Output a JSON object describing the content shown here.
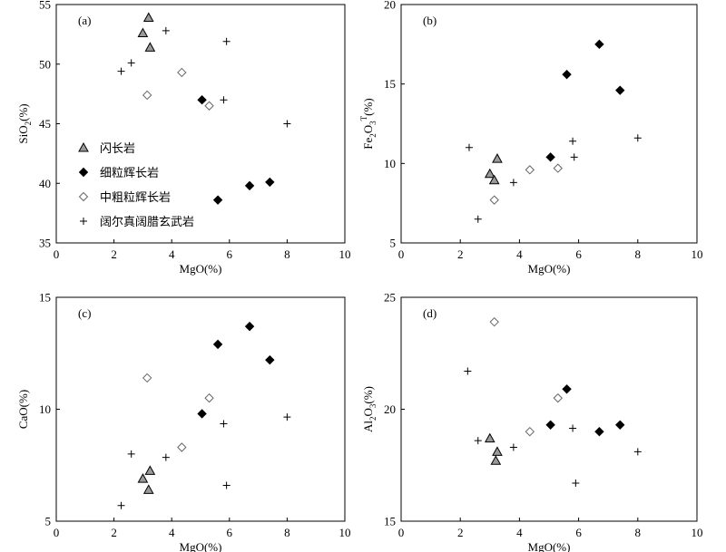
{
  "legend": {
    "items": [
      {
        "label": "闪长岩",
        "marker": "triangle",
        "fill": "#9a9a9a",
        "stroke": "#000000"
      },
      {
        "label": "细粒辉长岩",
        "marker": "diamond",
        "fill": "#000000",
        "stroke": "#000000"
      },
      {
        "label": "中粗粒辉长岩",
        "marker": "diamond",
        "fill": "#ffffff",
        "stroke": "#666666"
      },
      {
        "label": "阔尔真阔腊玄武岩",
        "marker": "plus",
        "fill": "none",
        "stroke": "#000000"
      }
    ]
  },
  "chart_data": [
    {
      "type": "scatter",
      "panel": "(a)",
      "xlabel": "MgO(%)",
      "ylabel": "SiO2(%)",
      "ylabel_parts": [
        {
          "t": "SiO",
          "sub": false
        },
        {
          "t": "2",
          "sub": true
        },
        {
          "t": "(%)",
          "sub": false
        }
      ],
      "xlim": [
        0,
        10
      ],
      "ylim": [
        35,
        55
      ],
      "xticks": [
        0,
        2,
        4,
        6,
        8,
        10
      ],
      "yticks": [
        35,
        40,
        45,
        50,
        55
      ],
      "series": [
        {
          "name": "闪长岩",
          "points": [
            [
              3.2,
              53.9
            ],
            [
              3.0,
              52.6
            ],
            [
              3.25,
              51.4
            ]
          ]
        },
        {
          "name": "细粒辉长岩",
          "points": [
            [
              5.05,
              47.0
            ],
            [
              5.6,
              38.6
            ],
            [
              6.7,
              39.8
            ],
            [
              7.4,
              40.1
            ]
          ]
        },
        {
          "name": "中粗粒辉长岩",
          "points": [
            [
              3.15,
              47.4
            ],
            [
              4.35,
              49.3
            ],
            [
              5.3,
              46.5
            ]
          ]
        },
        {
          "name": "阔尔真阔腊玄武岩",
          "points": [
            [
              2.25,
              49.4
            ],
            [
              2.6,
              50.1
            ],
            [
              3.8,
              52.8
            ],
            [
              5.9,
              51.9
            ],
            [
              5.8,
              47.0
            ],
            [
              8.0,
              45.0
            ]
          ]
        }
      ],
      "legend": true
    },
    {
      "type": "scatter",
      "panel": "(b)",
      "xlabel": "MgO(%)",
      "ylabel": "Fe2O3T(%)",
      "ylabel_parts": [
        {
          "t": "Fe",
          "sub": false
        },
        {
          "t": "2",
          "sub": true
        },
        {
          "t": "O",
          "sub": false
        },
        {
          "t": "3",
          "sub": true
        },
        {
          "t": "T",
          "sup": true
        },
        {
          "t": "(%)",
          "sub": false
        }
      ],
      "xlim": [
        0,
        10
      ],
      "ylim": [
        5,
        20
      ],
      "xticks": [
        0,
        2,
        4,
        6,
        8,
        10
      ],
      "yticks": [
        5,
        10,
        15,
        20
      ],
      "series": [
        {
          "name": "闪长岩",
          "points": [
            [
              3.25,
              10.3
            ],
            [
              3.0,
              9.35
            ],
            [
              3.15,
              8.95
            ]
          ]
        },
        {
          "name": "细粒辉长岩",
          "points": [
            [
              5.05,
              10.4
            ],
            [
              5.6,
              15.6
            ],
            [
              6.7,
              17.5
            ],
            [
              7.4,
              14.6
            ]
          ]
        },
        {
          "name": "中粗粒辉长岩",
          "points": [
            [
              3.15,
              7.7
            ],
            [
              4.35,
              9.6
            ],
            [
              5.3,
              9.7
            ]
          ]
        },
        {
          "name": "阔尔真阔腊玄武岩",
          "points": [
            [
              2.3,
              11.0
            ],
            [
              2.6,
              6.5
            ],
            [
              3.8,
              8.8
            ],
            [
              5.8,
              11.4
            ],
            [
              5.85,
              10.4
            ],
            [
              8.0,
              11.6
            ]
          ]
        }
      ]
    },
    {
      "type": "scatter",
      "panel": "(c)",
      "xlabel": "MgO(%)",
      "ylabel": "CaO(%)",
      "ylabel_parts": [
        {
          "t": "CaO(%)",
          "sub": false
        }
      ],
      "xlim": [
        0,
        10
      ],
      "ylim": [
        5,
        15
      ],
      "xticks": [
        0,
        2,
        4,
        6,
        8,
        10
      ],
      "yticks": [
        5,
        10,
        15
      ],
      "series": [
        {
          "name": "闪长岩",
          "points": [
            [
              3.0,
              6.9
            ],
            [
              3.25,
              7.25
            ],
            [
              3.2,
              6.4
            ]
          ]
        },
        {
          "name": "细粒辉长岩",
          "points": [
            [
              5.05,
              9.8
            ],
            [
              5.6,
              12.9
            ],
            [
              6.7,
              13.7
            ],
            [
              7.4,
              12.2
            ]
          ]
        },
        {
          "name": "中粗粒辉长岩",
          "points": [
            [
              3.15,
              11.4
            ],
            [
              4.35,
              8.3
            ],
            [
              5.3,
              10.5
            ]
          ]
        },
        {
          "name": "阔尔真阔腊玄武岩",
          "points": [
            [
              2.25,
              5.7
            ],
            [
              2.6,
              8.0
            ],
            [
              3.8,
              7.85
            ],
            [
              5.8,
              9.35
            ],
            [
              5.9,
              6.6
            ],
            [
              8.0,
              9.65
            ]
          ]
        }
      ]
    },
    {
      "type": "scatter",
      "panel": "(d)",
      "xlabel": "MgO(%)",
      "ylabel": "Al2O3(%)",
      "ylabel_parts": [
        {
          "t": "Al",
          "sub": false
        },
        {
          "t": "2",
          "sub": true
        },
        {
          "t": "O",
          "sub": false
        },
        {
          "t": "3",
          "sub": true
        },
        {
          "t": "(%)",
          "sub": false
        }
      ],
      "xlim": [
        0,
        10
      ],
      "ylim": [
        15,
        25
      ],
      "xticks": [
        0,
        2,
        4,
        6,
        8,
        10
      ],
      "yticks": [
        15,
        20,
        25
      ],
      "series": [
        {
          "name": "闪长岩",
          "points": [
            [
              3.0,
              18.7
            ],
            [
              3.25,
              18.1
            ],
            [
              3.2,
              17.7
            ]
          ]
        },
        {
          "name": "细粒辉长岩",
          "points": [
            [
              5.05,
              19.3
            ],
            [
              5.6,
              20.9
            ],
            [
              6.7,
              19.0
            ],
            [
              7.4,
              19.3
            ]
          ]
        },
        {
          "name": "中粗粒辉长岩",
          "points": [
            [
              3.15,
              23.9
            ],
            [
              4.35,
              19.0
            ],
            [
              5.3,
              20.5
            ]
          ]
        },
        {
          "name": "阔尔真阔腊玄武岩",
          "points": [
            [
              2.25,
              21.7
            ],
            [
              2.6,
              18.6
            ],
            [
              3.8,
              18.3
            ],
            [
              5.8,
              19.15
            ],
            [
              5.9,
              16.7
            ],
            [
              8.0,
              18.1
            ]
          ]
        }
      ]
    }
  ]
}
